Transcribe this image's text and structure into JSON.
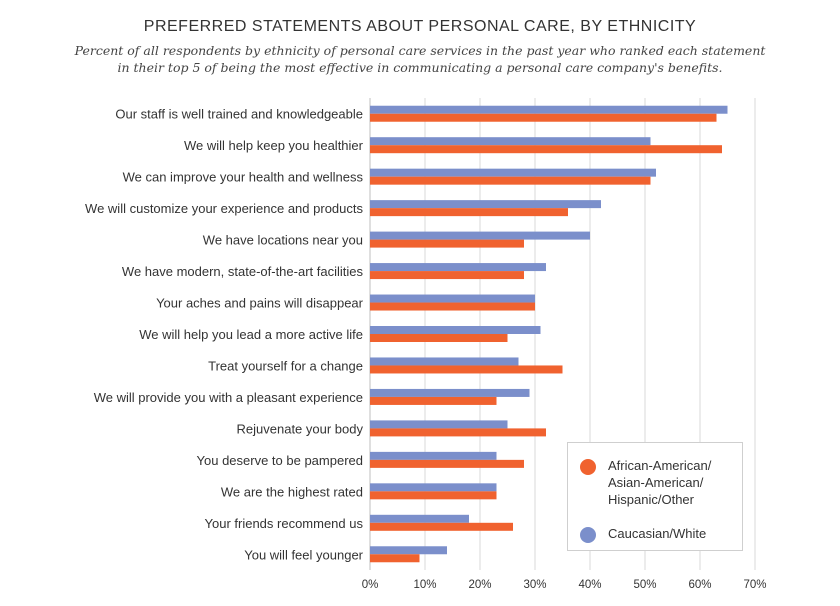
{
  "header": {
    "title": "PREFERRED STATEMENTS ABOUT PERSONAL CARE, BY ETHNICITY",
    "subtitle_line1": "Percent of all respondents by ethnicity of personal care services in the past year who ranked each statement",
    "subtitle_line2": "in their top 5 of being the most effective in communicating a personal care company's benefits."
  },
  "colors": {
    "african_american_etc": "#f0622f",
    "caucasian": "#7b8fcb",
    "grid": "#d9d9d9"
  },
  "chart_data": {
    "type": "bar",
    "orientation": "horizontal",
    "title": "PREFERRED STATEMENTS ABOUT PERSONAL CARE, BY ETHNICITY",
    "xlim": [
      0,
      70
    ],
    "x_ticks": [
      "0%",
      "10%",
      "20%",
      "30%",
      "40%",
      "50%",
      "60%",
      "70%"
    ],
    "grid": true,
    "legend_position": "bottom-right",
    "categories": [
      "Our staff is well trained and knowledgeable",
      "We will help keep you healthier",
      "We can improve your health and wellness",
      "We will customize your experience and products",
      "We have locations near you",
      "We have modern, state-of-the-art facilities",
      "Your aches and pains will disappear",
      "We will help you lead a more active life",
      "Treat yourself for a change",
      "We will provide you with a pleasant experience",
      "Rejuvenate your body",
      "You deserve to be pampered",
      "We are the highest rated",
      "Your friends recommend us",
      "You will feel younger"
    ],
    "series": [
      {
        "name": "Caucasian/White",
        "values": [
          65,
          51,
          52,
          42,
          40,
          32,
          30,
          31,
          27,
          29,
          25,
          23,
          23,
          18,
          14
        ]
      },
      {
        "name": "African-American/Asian-American/Hispanic/Other",
        "values": [
          63,
          64,
          51,
          36,
          28,
          28,
          30,
          25,
          35,
          23,
          32,
          28,
          23,
          26,
          9
        ]
      }
    ]
  },
  "legend": {
    "item1_line1": "African-American/",
    "item1_line2": "Asian-American/",
    "item1_line3": "Hispanic/Other",
    "item2": "Caucasian/White"
  }
}
